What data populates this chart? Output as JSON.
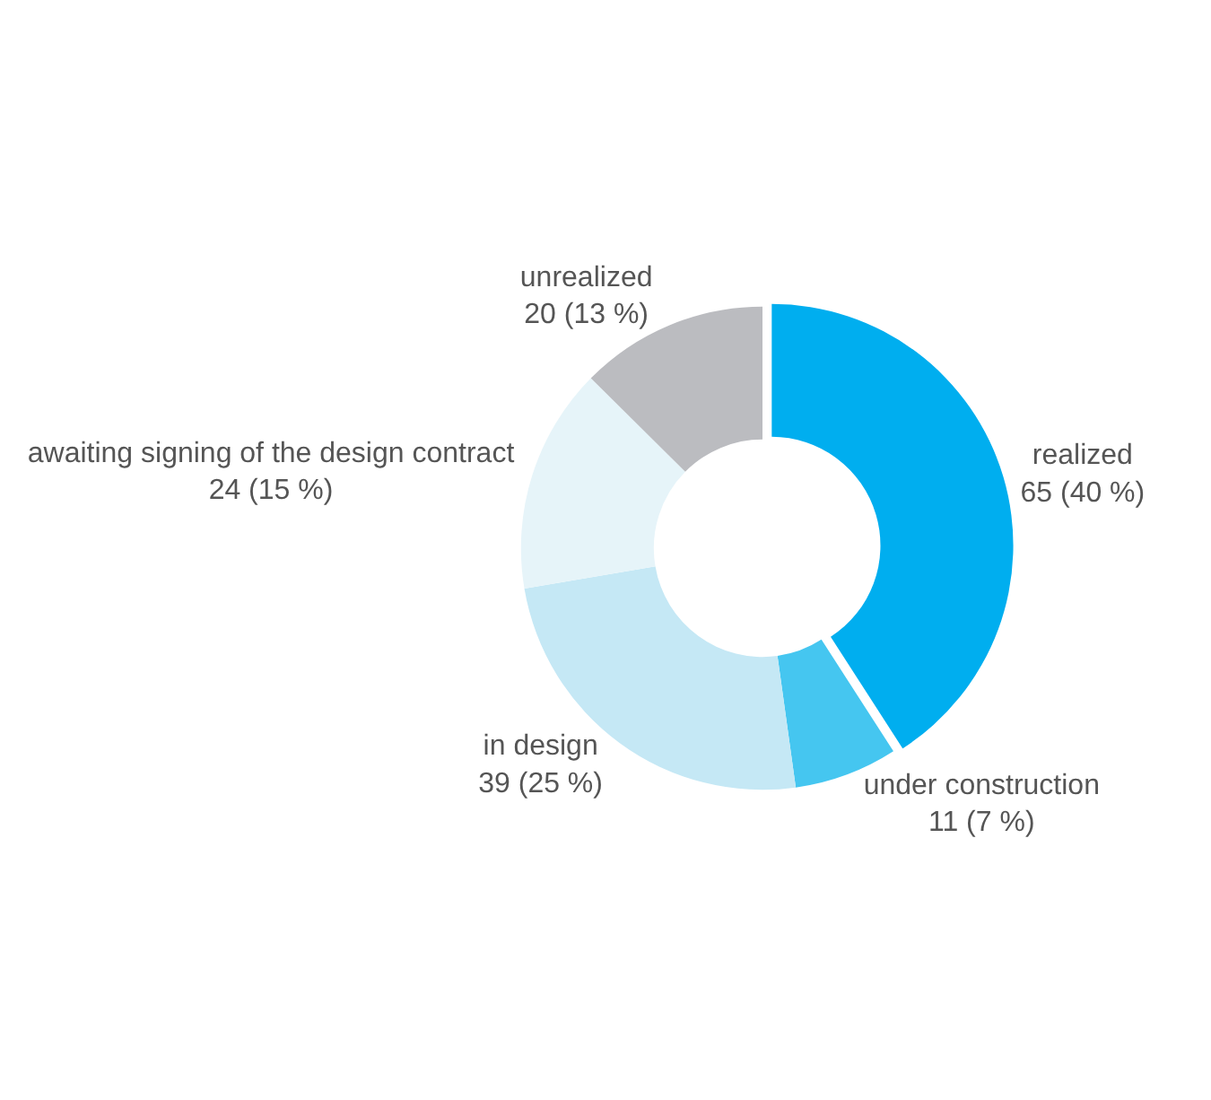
{
  "chart_data": {
    "type": "donut",
    "categories": [
      "realized",
      "under construction",
      "in design",
      "awaiting signing of the design contract",
      "unrealized"
    ],
    "values": [
      65,
      11,
      39,
      24,
      20
    ],
    "value_labels": [
      "65 (40 %)",
      "11 (7 %)",
      "39 (25 %)",
      "24 (15 %)",
      "20 (13 %)"
    ],
    "colors": [
      "#00aeef",
      "#45c6f0",
      "#c5e8f5",
      "#e6f4f9",
      "#bbbcc0"
    ],
    "legend": false
  }
}
